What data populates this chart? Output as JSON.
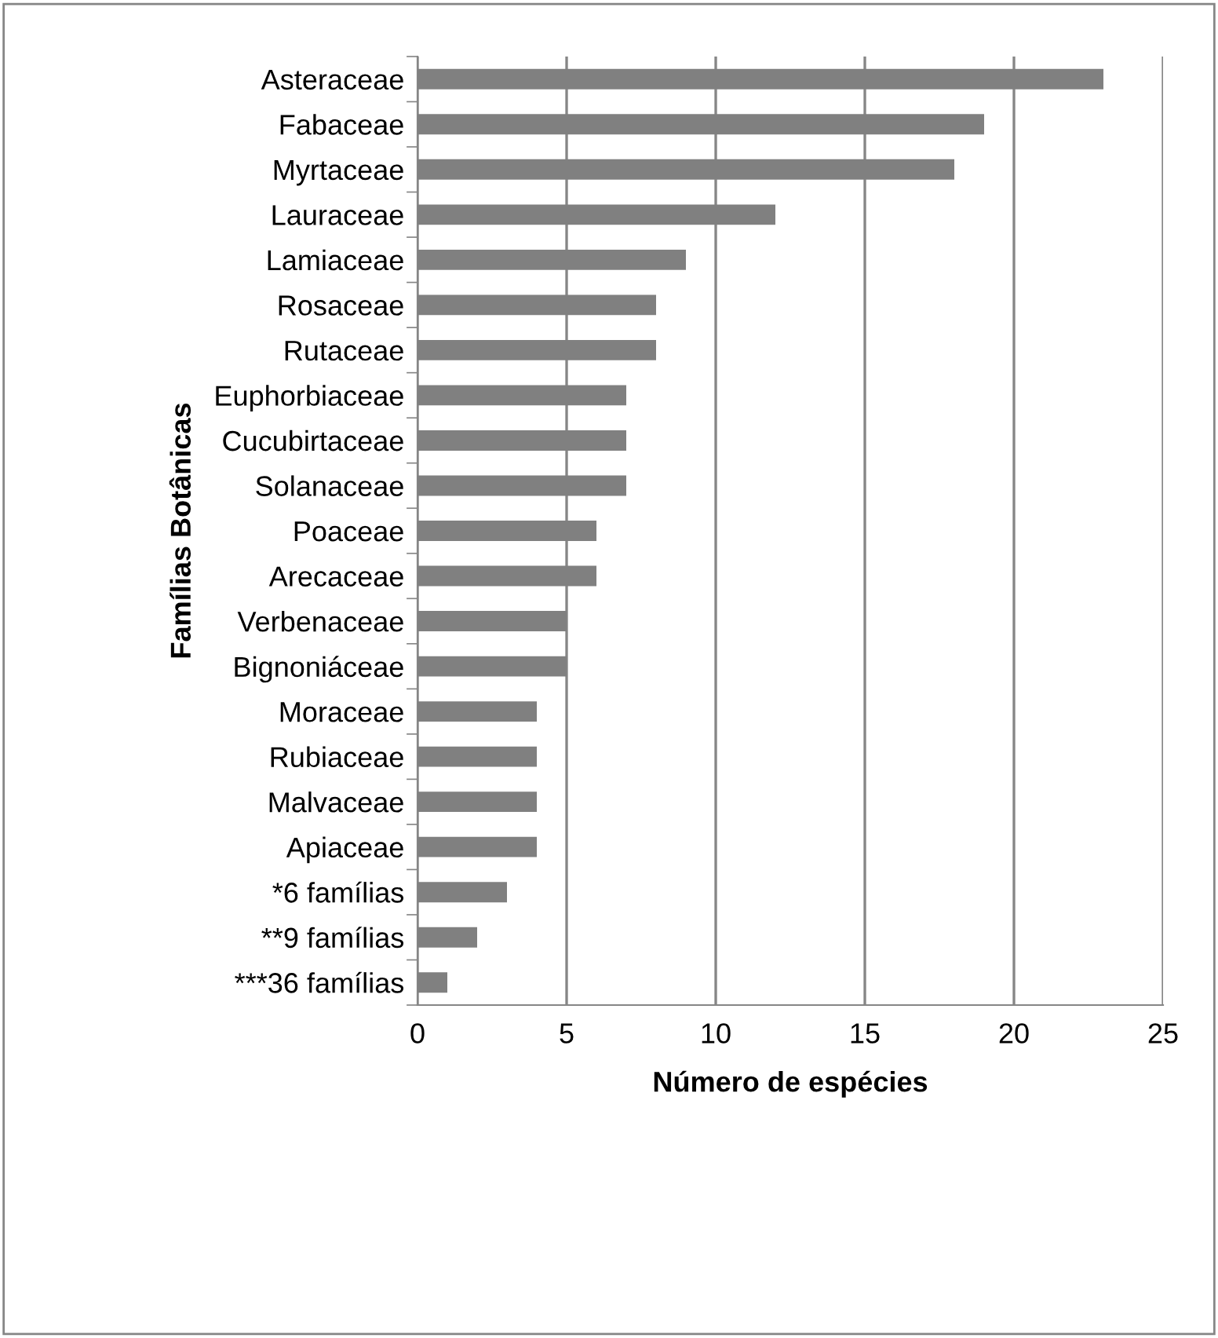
{
  "chart_data": {
    "type": "bar",
    "orientation": "horizontal",
    "xlabel": "Número de espécies",
    "ylabel": "Famílias Botânicas",
    "categories": [
      "Asteraceae",
      "Fabaceae",
      "Myrtaceae",
      "Lauraceae",
      "Lamiaceae",
      "Rosaceae",
      "Rutaceae",
      "Euphorbiaceae",
      "Cucubirtaceae",
      "Solanaceae",
      "Poaceae",
      "Arecaceae",
      "Verbenaceae",
      "Bignoniáceae",
      "Moraceae",
      "Rubiaceae",
      "Malvaceae",
      "Apiaceae",
      "*6 famílias",
      "**9 famílias",
      "***36 famílias"
    ],
    "values": [
      23,
      19,
      18,
      12,
      9,
      8,
      8,
      7,
      7,
      7,
      6,
      6,
      5,
      5,
      4,
      4,
      4,
      4,
      3,
      2,
      1
    ],
    "color": "#808080",
    "xlim": [
      0,
      25
    ],
    "xticks": [
      0,
      5,
      10,
      15,
      20,
      25
    ],
    "grid": "x"
  }
}
